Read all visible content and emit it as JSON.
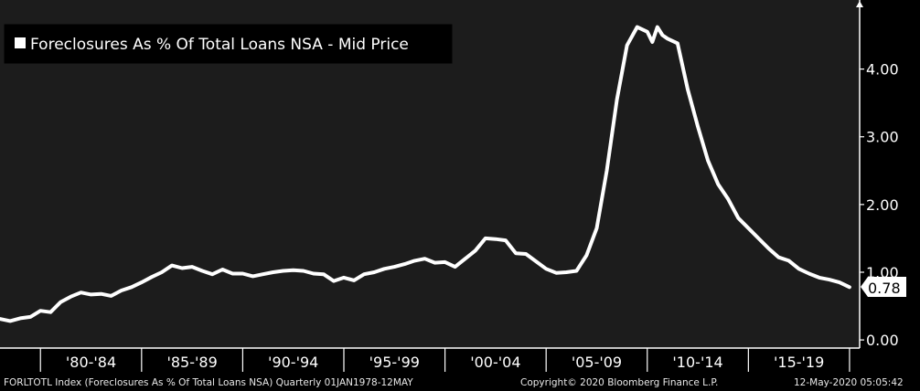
{
  "chart_data": {
    "type": "line",
    "title": "",
    "xlabel": "",
    "ylabel": "",
    "legend": {
      "label": "Foreclosures As % Of Total Loans NSA - Mid Price",
      "placement": "top-left"
    },
    "x_tick_labels": [
      "'80-'84",
      "'85-'89",
      "'90-'94",
      "'95-'99",
      "'00-'04",
      "'05-'09",
      "'10-'14",
      "'15-'19"
    ],
    "y_tick_labels": [
      "0.00",
      "1.00",
      "2.00",
      "3.00",
      "4.00"
    ],
    "y_ticks": [
      0,
      1,
      2,
      3,
      4
    ],
    "ylim": [
      -0.12,
      5.02
    ],
    "xlim": [
      1978.0,
      2020.5
    ],
    "grid": false,
    "last_value_label": "0.78",
    "line_color": "#ffffff",
    "background_color": "#1c1c1c",
    "series": [
      {
        "name": "Foreclosures As % Of Total Loans NSA - Mid Price",
        "x": [
          1978.0,
          1978.5,
          1979.0,
          1979.5,
          1980.0,
          1980.5,
          1981.0,
          1981.5,
          1982.0,
          1982.5,
          1983.0,
          1983.5,
          1984.0,
          1984.5,
          1985.0,
          1985.5,
          1986.0,
          1986.5,
          1987.0,
          1987.5,
          1988.0,
          1988.5,
          1989.0,
          1989.5,
          1990.0,
          1990.5,
          1991.0,
          1991.5,
          1992.0,
          1992.5,
          1993.0,
          1993.5,
          1994.0,
          1994.5,
          1995.0,
          1995.5,
          1996.0,
          1996.5,
          1997.0,
          1997.5,
          1998.0,
          1998.5,
          1999.0,
          1999.5,
          2000.0,
          2000.5,
          2001.0,
          2001.5,
          2002.0,
          2002.5,
          2003.0,
          2003.5,
          2004.0,
          2004.5,
          2005.0,
          2005.5,
          2006.0,
          2006.5,
          2007.0,
          2007.5,
          2008.0,
          2008.5,
          2009.0,
          2009.5,
          2010.0,
          2010.25,
          2010.5,
          2010.75,
          2011.0,
          2011.5,
          2012.0,
          2012.5,
          2013.0,
          2013.5,
          2014.0,
          2014.5,
          2015.0,
          2015.5,
          2016.0,
          2016.5,
          2017.0,
          2017.5,
          2018.0,
          2018.5,
          2019.0,
          2019.5,
          2020.0
        ],
        "values": [
          0.31,
          0.28,
          0.32,
          0.34,
          0.43,
          0.41,
          0.56,
          0.64,
          0.7,
          0.67,
          0.68,
          0.65,
          0.73,
          0.78,
          0.85,
          0.93,
          1.0,
          1.1,
          1.06,
          1.08,
          1.02,
          0.97,
          1.04,
          0.98,
          0.98,
          0.94,
          0.97,
          1.0,
          1.02,
          1.03,
          1.02,
          0.98,
          0.97,
          0.87,
          0.92,
          0.88,
          0.97,
          1.0,
          1.05,
          1.08,
          1.12,
          1.17,
          1.2,
          1.14,
          1.15,
          1.08,
          1.2,
          1.32,
          1.5,
          1.49,
          1.47,
          1.28,
          1.27,
          1.16,
          1.05,
          0.99,
          1.0,
          1.02,
          1.25,
          1.65,
          2.5,
          3.55,
          4.35,
          4.62,
          4.55,
          4.4,
          4.62,
          4.5,
          4.45,
          4.38,
          3.7,
          3.15,
          2.65,
          2.3,
          2.08,
          1.8,
          1.65,
          1.5,
          1.35,
          1.22,
          1.17,
          1.05,
          0.98,
          0.92,
          0.89,
          0.85,
          0.78
        ]
      }
    ]
  },
  "footer": {
    "left": "FORLTOTL Index (Foreclosures As % Of Total Loans NSA)  Quarterly 01JAN1978-12MAY",
    "center": "Copyright© 2020 Bloomberg Finance L.P.",
    "right": "12-May-2020 05:05:42"
  }
}
